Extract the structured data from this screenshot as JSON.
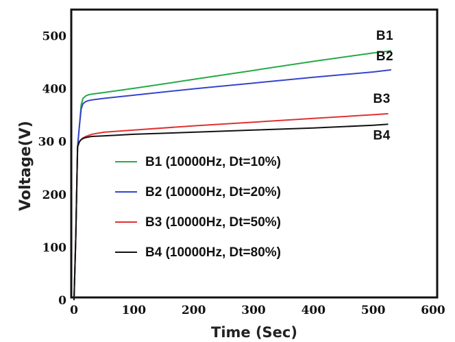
{
  "chart_data": {
    "type": "line",
    "xlabel": "Time (Sec)",
    "ylabel": "Voltage(V)",
    "xlim": [
      0,
      600
    ],
    "ylim": [
      0,
      550
    ],
    "x_ticks": [
      "0",
      "100",
      "200",
      "300",
      "400",
      "500",
      "600"
    ],
    "y_ticks": [
      "0",
      "100",
      "200",
      "30 0",
      "400",
      "500"
    ],
    "grid": false,
    "legend_position": "center-left",
    "series": [
      {
        "name": "B1 (10000Hz, Dt=10%)",
        "end_label": "B1",
        "color": "#22aa44",
        "x": [
          0,
          3,
          6,
          9,
          12,
          15,
          20,
          25,
          30,
          50,
          100,
          200,
          300,
          400,
          500,
          530
        ],
        "y": [
          0,
          120,
          290,
          330,
          370,
          382,
          387,
          389,
          390,
          393,
          401,
          418,
          435,
          452,
          468,
          472
        ]
      },
      {
        "name": "B2 (10000Hz, Dt=20%)",
        "end_label": "B2",
        "color": "#3344cc",
        "x": [
          0,
          3,
          6,
          9,
          12,
          15,
          20,
          25,
          30,
          50,
          100,
          200,
          300,
          400,
          500,
          530
        ],
        "y": [
          0,
          120,
          290,
          330,
          362,
          372,
          376,
          378,
          379,
          382,
          388,
          400,
          411,
          422,
          432,
          436
        ]
      },
      {
        "name": "B3 (10000Hz, Dt=50%)",
        "end_label": "B3",
        "color": "#e03030",
        "x": [
          0,
          3,
          6,
          9,
          12,
          15,
          20,
          25,
          30,
          50,
          100,
          200,
          300,
          400,
          500,
          525
        ],
        "y": [
          0,
          120,
          290,
          300,
          304,
          307,
          310,
          312,
          314,
          318,
          322,
          330,
          337,
          344,
          351,
          353
        ]
      },
      {
        "name": "B4 (10000Hz, Dt=80%)",
        "end_label": "B4",
        "color": "#111111",
        "x": [
          0,
          3,
          6,
          9,
          12,
          15,
          20,
          25,
          30,
          50,
          100,
          200,
          300,
          400,
          500,
          525
        ],
        "y": [
          0,
          120,
          290,
          300,
          304,
          306,
          308,
          309,
          310,
          311,
          314,
          318,
          322,
          326,
          331,
          333
        ]
      }
    ]
  }
}
